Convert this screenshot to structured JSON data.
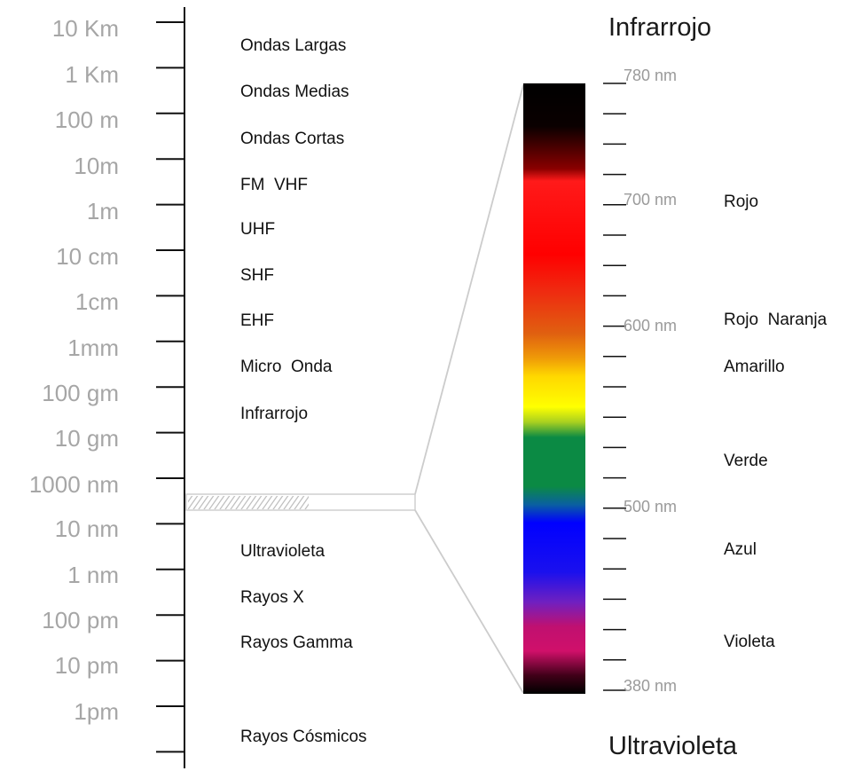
{
  "scale_labels": [
    "10 Km",
    "1 Km",
    "100 m",
    "10m",
    "1m",
    "10 cm",
    "1cm",
    "1mm",
    "100 gm",
    "10 gm",
    "1000 nm",
    "10 nm",
    "1 nm",
    "100 pm",
    "10 pm",
    "1pm"
  ],
  "band_labels": [
    "Ondas Largas",
    "Ondas Medias",
    "Ondas Cortas",
    "FM  VHF",
    "UHF",
    "SHF",
    "EHF",
    "Micro  Onda",
    "Infrarrojo",
    "Ultravioleta",
    "Rayos X",
    "Rayos Gamma",
    "Rayos Cósmicos"
  ],
  "visible_band": {
    "top_label": "Infrarrojo",
    "bottom_label": "Ultravioleta",
    "nm_labels": [
      "780 nm",
      "700 nm",
      "600 nm",
      "500 nm",
      "380 nm"
    ],
    "color_labels": [
      "Rojo",
      "Rojo  Naranja",
      "Amarillo",
      "Verde",
      "Azul",
      "Violeta"
    ]
  },
  "colors": {
    "scale_text": "#a6a6a6",
    "axis": "#111111",
    "zoom_lines": "#cccccc",
    "spectrum": [
      "#000000",
      "#ff1a1a",
      "#ff0000",
      "#e06010",
      "#ffff00",
      "#0b8a44",
      "#0000ff",
      "#7020c0",
      "#d0106a",
      "#000000"
    ]
  }
}
